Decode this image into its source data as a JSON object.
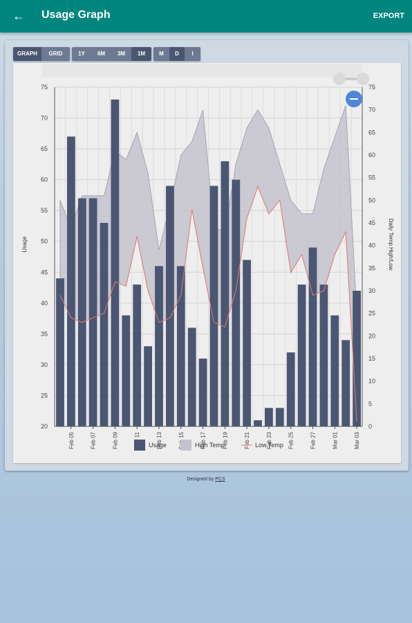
{
  "app": {
    "title": "Usage Graph",
    "export_label": "EXPORT"
  },
  "toolbar": {
    "view": [
      "GRAPH",
      "GRID"
    ],
    "range": [
      "1Y",
      "6M",
      "3M",
      "1M"
    ],
    "interval": [
      "M",
      "D",
      "I"
    ]
  },
  "footer": {
    "prefix": "Designed by ",
    "link": "PCS"
  },
  "colors": {
    "appbar": "#00857f",
    "usage": "#4b5672",
    "high_temp": "#c4c2cd",
    "low_temp": "#e27b74",
    "zoom_button": "#4f86d7"
  },
  "icons": {
    "back": "arrow-left-icon",
    "zoom_out": "minus-icon",
    "zoom_slider": "zoom-range-slider"
  },
  "chart_data": {
    "type": "bar",
    "ylabel": "Usage",
    "y2label": "Daily Temp High/Low",
    "ylim": [
      20,
      75
    ],
    "y2lim": [
      0,
      75
    ],
    "yticks": [
      "75",
      "70",
      "65",
      "60",
      "55",
      "50",
      "45",
      "40",
      "35",
      "30",
      "25",
      "20"
    ],
    "y2ticks": [
      "75",
      "70",
      "65",
      "60",
      "55",
      "50",
      "45",
      "40",
      "35",
      "30",
      "25",
      "20",
      "15",
      "10",
      "5",
      "0"
    ],
    "xticks": [
      "Feb 05",
      "Feb 07",
      "Feb 09",
      "Feb 11",
      "Feb 13",
      "Feb 15",
      "Feb 17",
      "Feb 19",
      "Feb 21",
      "Feb 23",
      "Feb 25",
      "Feb 27",
      "Mar 01",
      "Mar 03"
    ],
    "x": [
      "Feb 04",
      "Feb 05",
      "Feb 06",
      "Feb 07",
      "Feb 08",
      "Feb 09",
      "Feb 10",
      "Feb 11",
      "Feb 12",
      "Feb 13",
      "Feb 14",
      "Feb 15",
      "Feb 16",
      "Feb 17",
      "Feb 18",
      "Feb 19",
      "Feb 20",
      "Feb 21",
      "Feb 22",
      "Feb 23",
      "Feb 24",
      "Feb 25",
      "Feb 26",
      "Feb 27",
      "Feb 28",
      "Mar 01",
      "Mar 02",
      "Mar 03"
    ],
    "grid": true,
    "legend": "bottom-center",
    "series": [
      {
        "name": "Usage",
        "type": "bar",
        "values": [
          44,
          67,
          57,
          57,
          53,
          73,
          38,
          43,
          33,
          46,
          59,
          46,
          36,
          31,
          59,
          63,
          60,
          47,
          21,
          23,
          23,
          32,
          43,
          49,
          43,
          38,
          34,
          42
        ]
      },
      {
        "name": "High Temp",
        "type": "area",
        "values": [
          50,
          44,
          51,
          51,
          51,
          61,
          59,
          65,
          56,
          39,
          49,
          60,
          63,
          70,
          44,
          43,
          58,
          66,
          70,
          66,
          58,
          50,
          47,
          47,
          57,
          64,
          71,
          25
        ]
      },
      {
        "name": "Low Temp",
        "type": "line",
        "values": [
          29,
          24,
          23,
          24,
          25,
          32,
          31,
          42,
          30,
          23,
          24,
          29,
          48,
          35,
          23,
          22,
          30,
          46,
          53,
          47,
          50,
          34,
          38,
          29,
          30,
          38,
          43,
          1
        ]
      }
    ]
  }
}
